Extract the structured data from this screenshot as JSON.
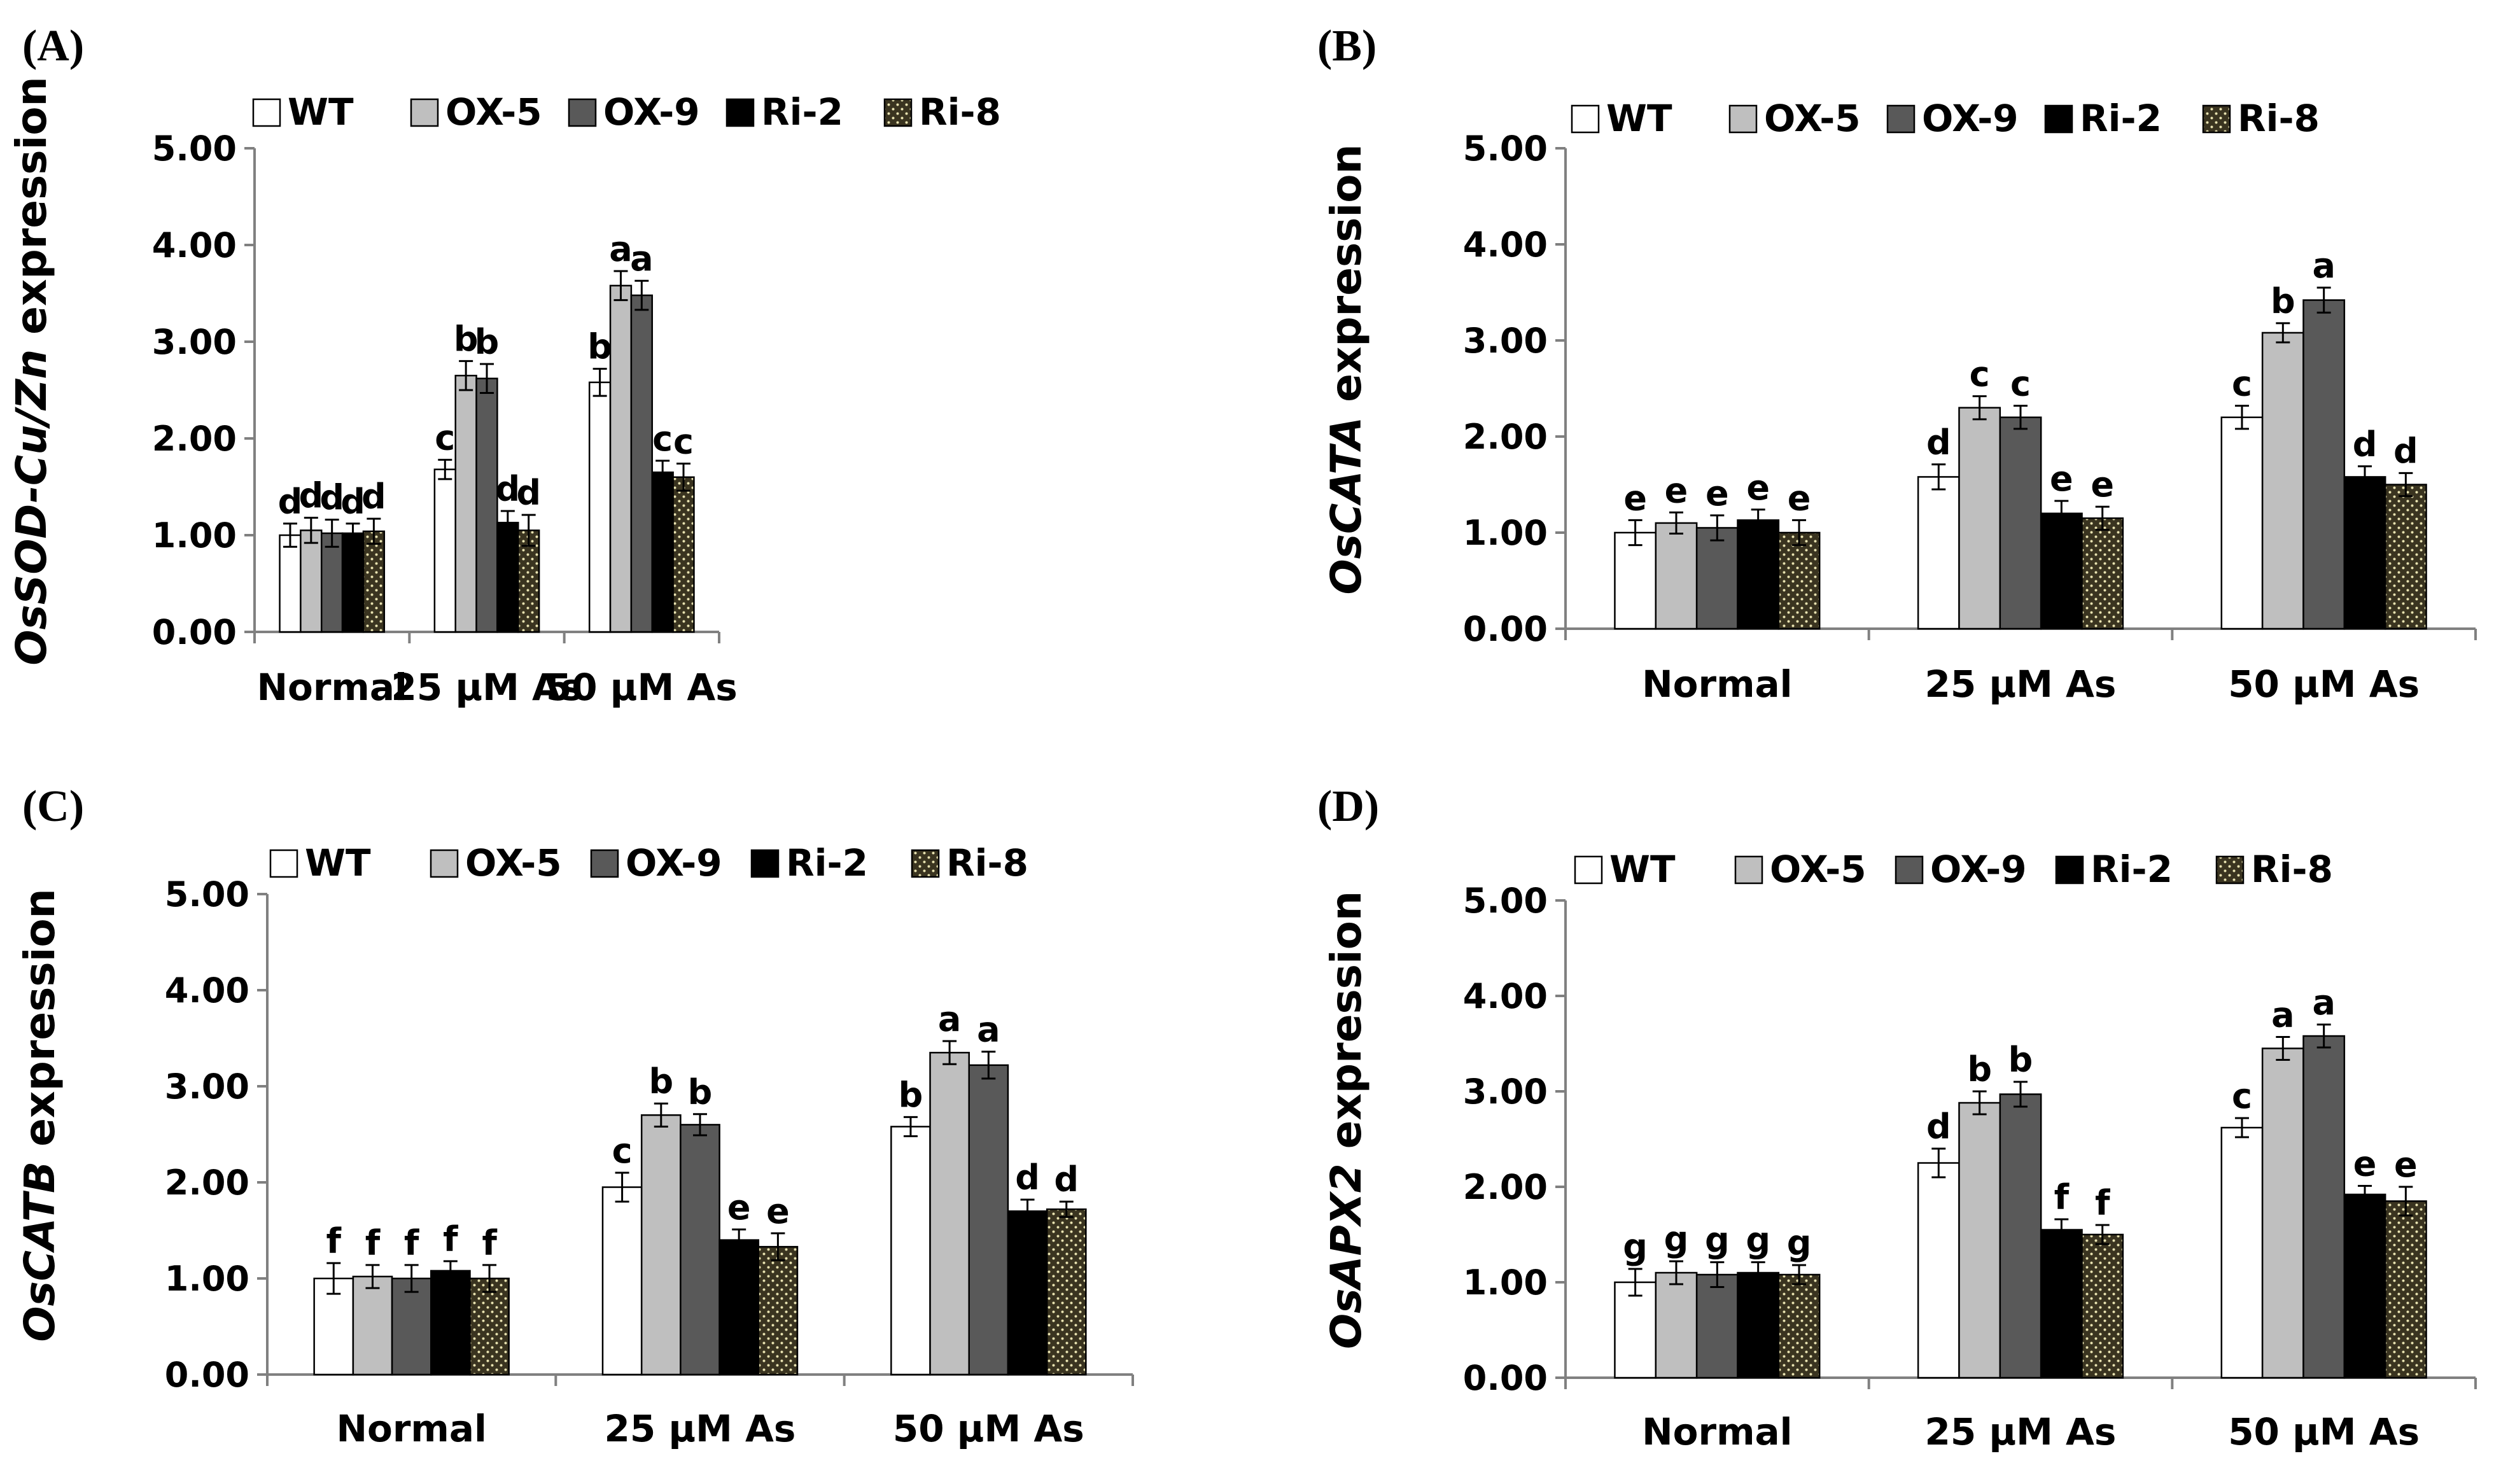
{
  "series_styles": [
    {
      "name": "WT",
      "fill": "#ffffff",
      "pattern": false
    },
    {
      "name": "OX-5",
      "fill": "#bfbfbf",
      "pattern": false
    },
    {
      "name": "OX-9",
      "fill": "#595959",
      "pattern": false
    },
    {
      "name": "Ri-2",
      "fill": "#000000",
      "pattern": false
    },
    {
      "name": "Ri-8",
      "fill": "#3a3420",
      "pattern": true
    }
  ],
  "chart_data": [
    {
      "type": "bar",
      "panel": "(A)",
      "ylabel_italic": "OsSOD-Cu/Zn",
      "ylabel_rest": " expression",
      "ylim": [
        0,
        5
      ],
      "yticks": [
        "0.00",
        "1.00",
        "2.00",
        "3.00",
        "4.00",
        "5.00"
      ],
      "categories": [
        "Normal",
        "25 μM As",
        "50 μM As"
      ],
      "series": [
        {
          "name": "WT",
          "values": [
            1.0,
            1.68,
            2.58
          ],
          "errors": [
            0.12,
            0.1,
            0.14
          ],
          "letters": [
            "d",
            "c",
            "b"
          ]
        },
        {
          "name": "OX-5",
          "values": [
            1.05,
            2.65,
            3.58
          ],
          "errors": [
            0.13,
            0.15,
            0.15
          ],
          "letters": [
            "d",
            "b",
            "a"
          ]
        },
        {
          "name": "OX-9",
          "values": [
            1.02,
            2.62,
            3.48
          ],
          "errors": [
            0.14,
            0.15,
            0.15
          ],
          "letters": [
            "d",
            "b",
            "a"
          ]
        },
        {
          "name": "Ri-2",
          "values": [
            1.02,
            1.13,
            1.65
          ],
          "errors": [
            0.1,
            0.12,
            0.12
          ],
          "letters": [
            "d",
            "d",
            "c"
          ]
        },
        {
          "name": "Ri-8",
          "values": [
            1.04,
            1.05,
            1.6
          ],
          "errors": [
            0.13,
            0.16,
            0.14
          ],
          "letters": [
            "d",
            "d",
            "c"
          ]
        }
      ]
    },
    {
      "type": "bar",
      "panel": "(B)",
      "ylabel_italic": "OsCATA",
      "ylabel_rest": " expression",
      "ylim": [
        0,
        5
      ],
      "yticks": [
        "0.00",
        "1.00",
        "2.00",
        "3.00",
        "4.00",
        "5.00"
      ],
      "categories": [
        "Normal",
        "25 μM As",
        "50 μM As"
      ],
      "series": [
        {
          "name": "WT",
          "values": [
            1.0,
            1.58,
            2.2
          ],
          "errors": [
            0.13,
            0.13,
            0.12
          ],
          "letters": [
            "e",
            "d",
            "c"
          ]
        },
        {
          "name": "OX-5",
          "values": [
            1.1,
            2.3,
            3.08
          ],
          "errors": [
            0.11,
            0.12,
            0.1
          ],
          "letters": [
            "e",
            "c",
            "b"
          ]
        },
        {
          "name": "OX-9",
          "values": [
            1.05,
            2.2,
            3.42
          ],
          "errors": [
            0.13,
            0.12,
            0.13
          ],
          "letters": [
            "e",
            "c",
            "a"
          ]
        },
        {
          "name": "Ri-2",
          "values": [
            1.13,
            1.2,
            1.58
          ],
          "errors": [
            0.11,
            0.13,
            0.11
          ],
          "letters": [
            "e",
            "e",
            "d"
          ]
        },
        {
          "name": "Ri-8",
          "values": [
            1.0,
            1.15,
            1.5
          ],
          "errors": [
            0.13,
            0.12,
            0.12
          ],
          "letters": [
            "e",
            "e",
            "d"
          ]
        }
      ]
    },
    {
      "type": "bar",
      "panel": "(C)",
      "ylabel_italic": "OsCATB",
      "ylabel_rest": " expression",
      "ylim": [
        0,
        5
      ],
      "yticks": [
        "0.00",
        "1.00",
        "2.00",
        "3.00",
        "4.00",
        "5.00"
      ],
      "categories": [
        "Normal",
        "25 μM As",
        "50 μM As"
      ],
      "series": [
        {
          "name": "WT",
          "values": [
            1.0,
            1.95,
            2.58
          ],
          "errors": [
            0.16,
            0.15,
            0.1
          ],
          "letters": [
            "f",
            "c",
            "b"
          ]
        },
        {
          "name": "OX-5",
          "values": [
            1.02,
            2.7,
            3.35
          ],
          "errors": [
            0.12,
            0.12,
            0.12
          ],
          "letters": [
            "f",
            "b",
            "a"
          ]
        },
        {
          "name": "OX-9",
          "values": [
            1.0,
            2.6,
            3.22
          ],
          "errors": [
            0.14,
            0.11,
            0.14
          ],
          "letters": [
            "f",
            "b",
            "a"
          ]
        },
        {
          "name": "Ri-2",
          "values": [
            1.08,
            1.4,
            1.7
          ],
          "errors": [
            0.1,
            0.11,
            0.12
          ],
          "letters": [
            "f",
            "e",
            "d"
          ]
        },
        {
          "name": "Ri-8",
          "values": [
            1.0,
            1.33,
            1.72
          ],
          "errors": [
            0.14,
            0.14,
            0.08
          ],
          "letters": [
            "f",
            "e",
            "d"
          ]
        }
      ]
    },
    {
      "type": "bar",
      "panel": "(D)",
      "ylabel_italic": "OsAPX2",
      "ylabel_rest": " expression",
      "ylim": [
        0,
        5
      ],
      "yticks": [
        "0.00",
        "1.00",
        "2.00",
        "3.00",
        "4.00",
        "5.00"
      ],
      "categories": [
        "Normal",
        "25 μM As",
        "50 μM As"
      ],
      "series": [
        {
          "name": "WT",
          "values": [
            1.0,
            2.25,
            2.62
          ],
          "errors": [
            0.14,
            0.15,
            0.1
          ],
          "letters": [
            "g",
            "d",
            "c"
          ]
        },
        {
          "name": "OX-5",
          "values": [
            1.1,
            2.88,
            3.45
          ],
          "errors": [
            0.12,
            0.12,
            0.12
          ],
          "letters": [
            "g",
            "b",
            "a"
          ]
        },
        {
          "name": "OX-9",
          "values": [
            1.08,
            2.97,
            3.58
          ],
          "errors": [
            0.13,
            0.13,
            0.12
          ],
          "letters": [
            "g",
            "b",
            "a"
          ]
        },
        {
          "name": "Ri-2",
          "values": [
            1.1,
            1.55,
            1.92
          ],
          "errors": [
            0.11,
            0.11,
            0.09
          ],
          "letters": [
            "g",
            "f",
            "e"
          ]
        },
        {
          "name": "Ri-8",
          "values": [
            1.08,
            1.5,
            1.85
          ],
          "errors": [
            0.1,
            0.1,
            0.15
          ],
          "letters": [
            "g",
            "f",
            "e"
          ]
        }
      ]
    }
  ]
}
